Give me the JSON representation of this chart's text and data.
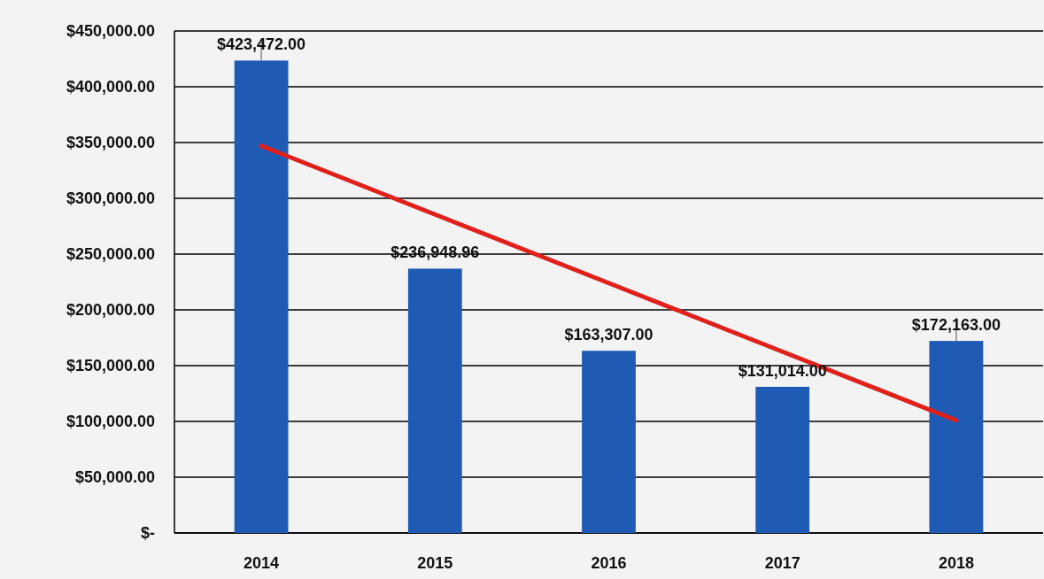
{
  "chart_data": {
    "type": "bar",
    "categories": [
      "2014",
      "2015",
      "2016",
      "2017",
      "2018"
    ],
    "values": [
      423472,
      236948.96,
      163307,
      131014,
      172163
    ],
    "color": "#1f5bb5",
    "value_labels": [
      "$423,472.00",
      "$236,948.96",
      "$163,307.00",
      "$131,014.00",
      "$172,163.00"
    ],
    "errors": [
      [
        423472,
        443000
      ],
      null,
      null,
      null,
      [
        172163,
        193000
      ]
    ],
    "series": [
      {
        "type": "line",
        "color": "#e0201b",
        "values": [
          347000,
          285500,
          224000,
          162500,
          101000
        ]
      }
    ],
    "ylim": [
      0,
      450000
    ],
    "yticks": [
      {
        "value": 0,
        "label": "$-"
      },
      {
        "value": 50000,
        "label": "$50,000.00"
      },
      {
        "value": 100000,
        "label": "$100,000.00"
      },
      {
        "value": 150000,
        "label": "$150,000.00"
      },
      {
        "value": 200000,
        "label": "$200,000.00"
      },
      {
        "value": 250000,
        "label": "$250,000.00"
      },
      {
        "value": 300000,
        "label": "$300,000.00"
      },
      {
        "value": 350000,
        "label": "$350,000.00"
      },
      {
        "value": 400000,
        "label": "$400,000.00"
      },
      {
        "value": 450000,
        "label": "$450,000.00"
      }
    ],
    "grid": "y"
  }
}
